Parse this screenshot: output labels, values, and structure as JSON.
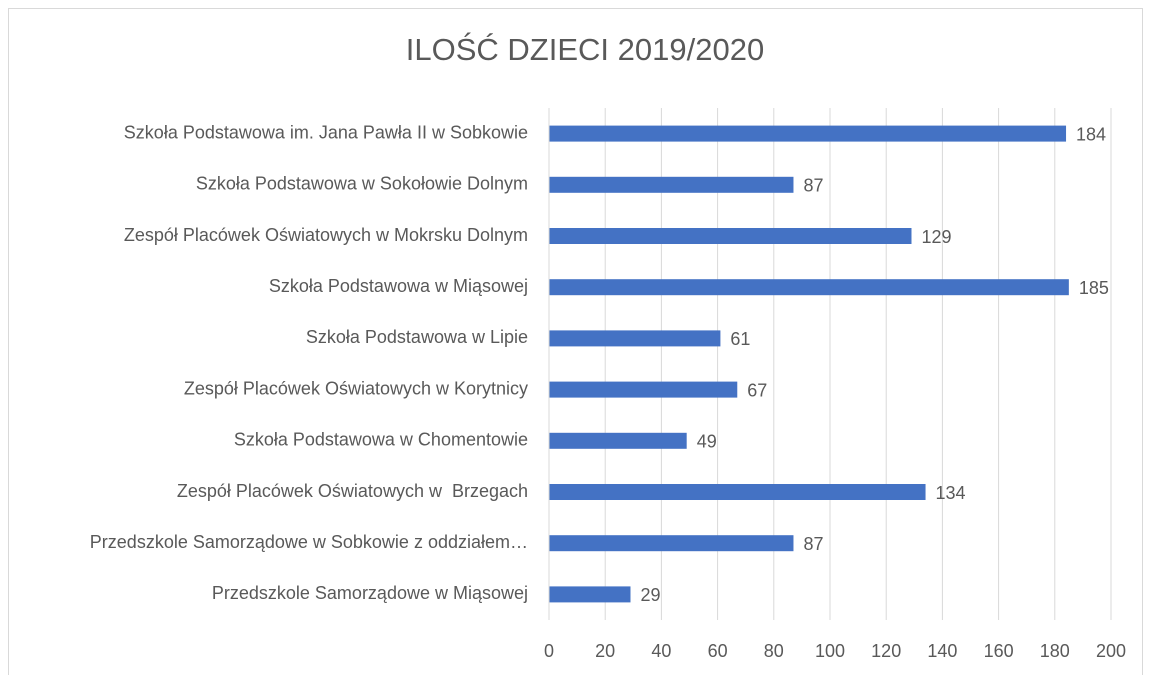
{
  "chart_data": {
    "type": "barh",
    "title": "ILOŚĆ DZIECI 2019/2020",
    "categories": [
      "Szkoła Podstawowa im. Jana Pawła II w Sobkowie",
      "Szkoła Podstawowa w Sokołowie Dolnym",
      "Zespół Placówek Oświatowych w Mokrsku Dolnym",
      "Szkoła Podstawowa w Miąsowej",
      "Szkoła Podstawowa w Lipie",
      "Zespół Placówek Oświatowych w Korytnicy",
      "Szkoła Podstawowa w Chomentowie",
      "Zespół Placówek Oświatowych w  Brzegach",
      "Przedszkole Samorządowe w Sobkowie z oddziałem…",
      "Przedszkole Samorządowe w Miąsowej"
    ],
    "values": [
      184,
      87,
      129,
      185,
      61,
      67,
      49,
      134,
      87,
      29
    ],
    "color": "#4472c4",
    "xlim": [
      0,
      200
    ],
    "xticks": [
      0,
      20,
      40,
      60,
      80,
      100,
      120,
      140,
      160,
      180,
      200
    ],
    "grid": true
  }
}
